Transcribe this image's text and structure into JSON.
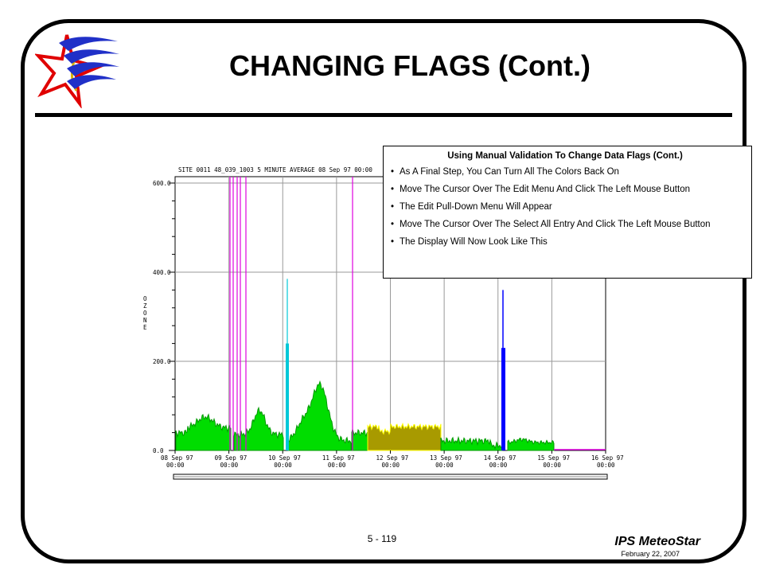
{
  "slide": {
    "title": "CHANGING FLAGS (Cont.)",
    "page_number": "5 - 119",
    "brand": "IPS MeteoStar",
    "date": "February 22, 2007"
  },
  "plot": {
    "header": "SITE 0011 48_039_1003 5 MINUTE AVERAGE 08 Sep 97 00:00",
    "ylabel_letters": [
      "O",
      "Z",
      "O",
      "N",
      "E"
    ],
    "y_ticks": [
      "600.0",
      "400.0",
      "200.0",
      "0.0"
    ],
    "x_dates": [
      "08 Sep 97",
      "09 Sep 97",
      "10 Sep 97",
      "11 Sep 97",
      "12 Sep 97",
      "13 Sep 97",
      "14 Sep 97",
      "15 Sep 97",
      "16 Sep 97"
    ],
    "x_times": [
      "00:00",
      "00:00",
      "00:00",
      "00:00",
      "00:00",
      "00:00",
      "00:00",
      "00:00",
      "00:00"
    ],
    "colors": {
      "normal": "#00dd00",
      "flagged_yellow": "#ffff00",
      "flagged_olive": "#a89a00",
      "cyan": "#00c8d8",
      "blue": "#0000ff",
      "magenta": "#e000e0"
    }
  },
  "infobox": {
    "heading": "Using Manual Validation To Change Data Flags (Cont.)",
    "bullets": [
      "As A Final Step, You Can Turn  All The  Colors Back On",
      "Move The  Cursor Over The  Edit Menu And Click The  Left Mouse Button",
      "The Edit Pull-Down Menu Will Appear",
      "Move The  Cursor Over The  Select All Entry And Click The  Left Mouse Button",
      "The Display Will Now Look Like This"
    ]
  }
}
